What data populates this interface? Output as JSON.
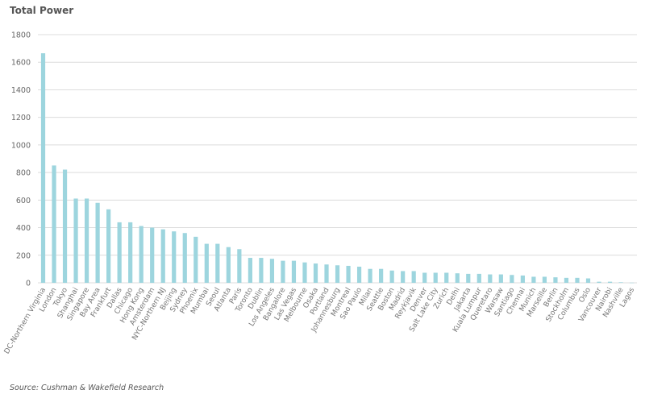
{
  "chart_data": {
    "type": "bar",
    "title": "Total Power",
    "source": "Source: Cushman & Wakefield Research",
    "xlabel": "",
    "ylabel": "",
    "ylim": [
      0,
      1800
    ],
    "yticks": [
      0,
      200,
      400,
      600,
      800,
      1000,
      1200,
      1400,
      1600,
      1800
    ],
    "grid": true,
    "bar_color": "#9dd5de",
    "categories": [
      "DC-Northern Virginia",
      "London",
      "Tokyo",
      "Shanghai",
      "Singapore",
      "Bay Area",
      "Frankfurt",
      "Dallas",
      "Chicago",
      "Hong Kong",
      "Amsterdam",
      "NYC-Northern NJ",
      "Beijing",
      "Sydney",
      "Phoenix",
      "Mumbai",
      "Seoul",
      "Atlanta",
      "Paris",
      "Toronto",
      "Dublin",
      "Los Angeles",
      "Bangalore",
      "Las Vegas",
      "Melbourne",
      "Osaka",
      "Portland",
      "Johannesburg",
      "Montreal",
      "Sao Paulo",
      "Milan",
      "Seattle",
      "Boston",
      "Madrid",
      "Reykjavik",
      "Denver",
      "Salt Lake City",
      "Zurich",
      "Delhi",
      "Jakarta",
      "Kuala Lumpur",
      "Queretaro",
      "Warsaw",
      "Santiago",
      "Chennai",
      "Munich",
      "Marseille",
      "Berlin",
      "Stockholm",
      "Columbus",
      "Oslo",
      "Vancouver",
      "Nairobi",
      "Nashville",
      "Lagos"
    ],
    "values": [
      1665,
      851,
      821,
      611,
      611,
      580,
      533,
      439,
      439,
      412,
      400,
      388,
      373,
      361,
      334,
      283,
      283,
      259,
      244,
      181,
      181,
      174,
      160,
      160,
      148,
      140,
      133,
      127,
      123,
      117,
      101,
      101,
      89,
      85,
      85,
      73,
      73,
      73,
      69,
      65,
      65,
      61,
      61,
      57,
      53,
      44,
      44,
      40,
      36,
      36,
      32,
      8,
      8,
      4,
      1
    ]
  }
}
